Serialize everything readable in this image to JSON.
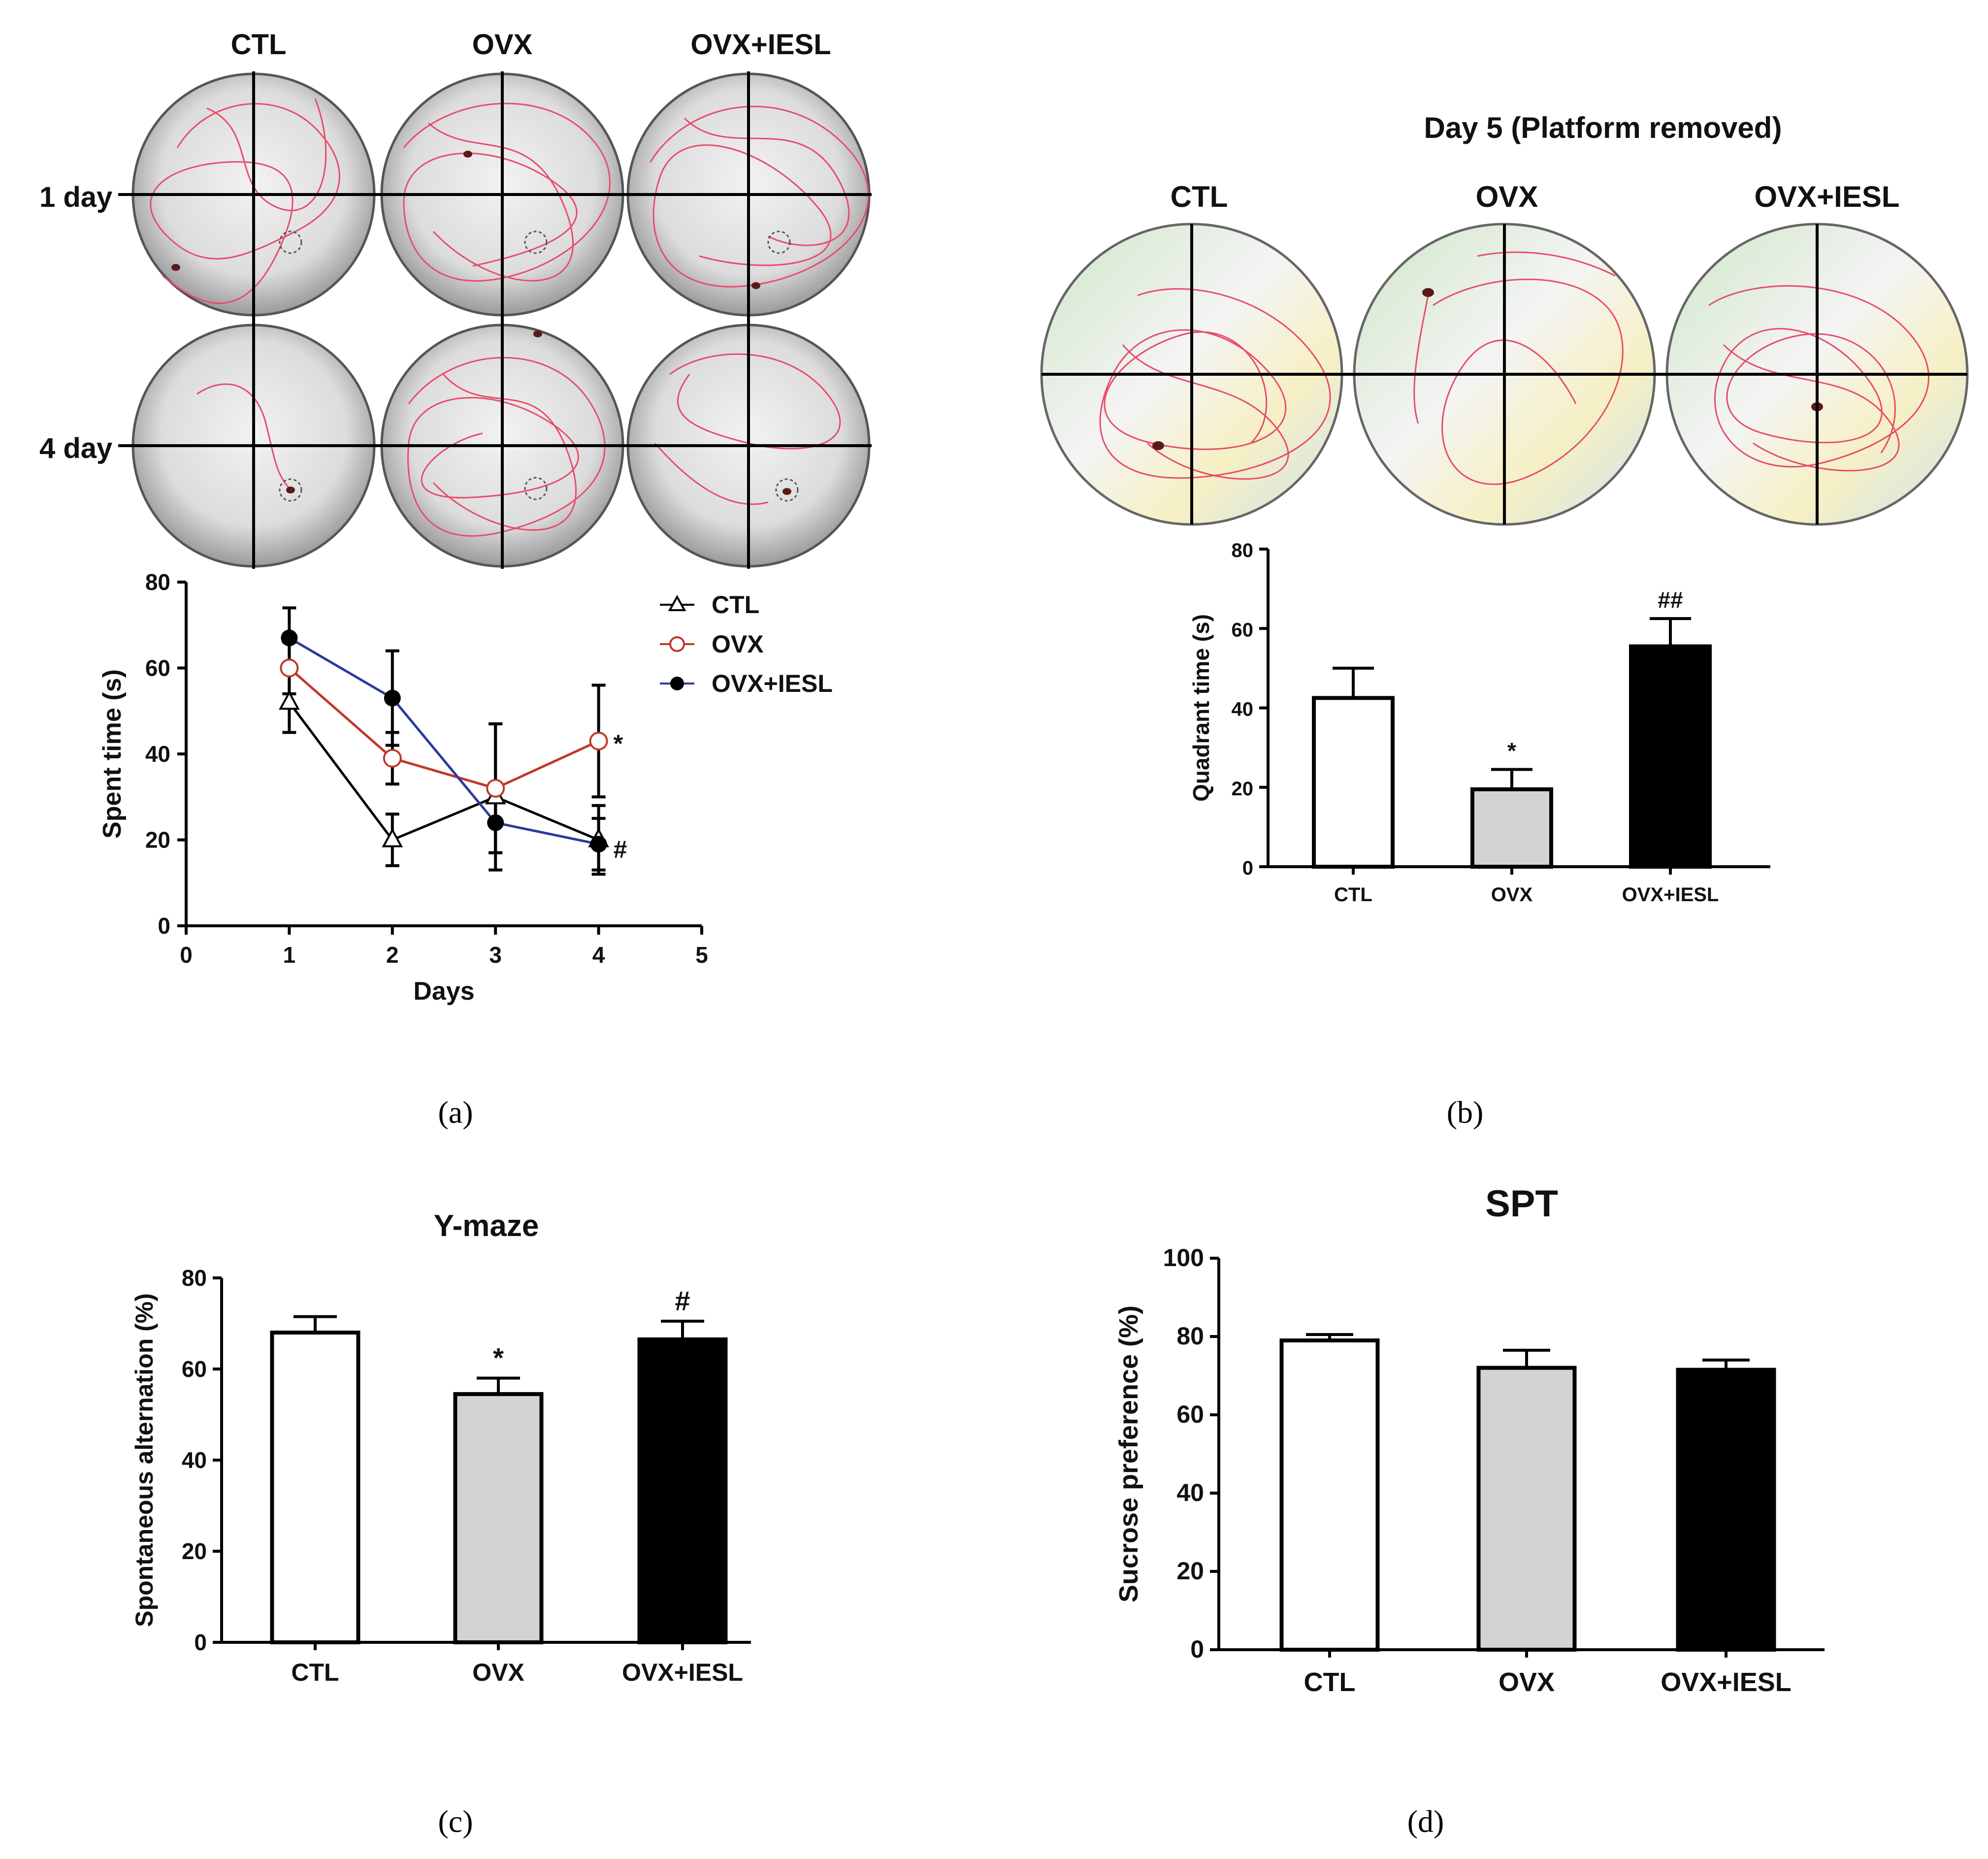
{
  "colors": {
    "ctl": "#000000",
    "ovx": "#c0392b",
    "iesl": "#2b3a9b",
    "track": "#e94b6b",
    "bar_white": "#ffffff",
    "bar_gray": "#d3d3d3",
    "bar_black": "#000000"
  },
  "panels": {
    "a": {
      "label": "(a)",
      "group_headers": [
        "CTL",
        "OVX",
        "OVX+IESL"
      ],
      "row_labels": [
        "1 day",
        "4 day"
      ]
    },
    "b": {
      "label": "(b)",
      "title": "Day 5 (Platform removed)",
      "group_headers": [
        "CTL",
        "OVX",
        "OVX+IESL"
      ]
    },
    "c": {
      "label": "(c)"
    },
    "d": {
      "label": "(d)"
    }
  },
  "chart_data": [
    {
      "id": "a",
      "type": "line",
      "title": "",
      "xlabel": "Days",
      "ylabel": "Spent time (s)",
      "xlim": [
        0,
        5
      ],
      "ylim": [
        0,
        80
      ],
      "xticks": [
        "0",
        "1",
        "2",
        "3",
        "4",
        "5"
      ],
      "yticks": [
        "0",
        "20",
        "40",
        "60",
        "80"
      ],
      "legend": "top-right",
      "series": [
        {
          "name": "CTL",
          "marker": "open-triangle",
          "x": [
            1,
            2,
            3,
            4
          ],
          "y": [
            52,
            20,
            30,
            20
          ],
          "err": [
            7,
            6,
            17,
            8
          ]
        },
        {
          "name": "OVX",
          "marker": "open-circle",
          "x": [
            1,
            2,
            3,
            4
          ],
          "y": [
            60,
            39,
            32,
            43
          ],
          "err": [
            6,
            6,
            15,
            13
          ]
        },
        {
          "name": "OVX+IESL",
          "marker": "filled-circle",
          "x": [
            1,
            2,
            3,
            4
          ],
          "y": [
            67,
            53,
            24,
            19
          ],
          "err": [
            7,
            11,
            7,
            6
          ]
        }
      ],
      "annotations": [
        {
          "text": "*",
          "x": 4,
          "y": 43
        },
        {
          "text": "#",
          "x": 4,
          "y": 19
        }
      ]
    },
    {
      "id": "b",
      "type": "bar",
      "title": "",
      "xlabel": "",
      "ylabel": "Quadrant time (s)",
      "ylim": [
        0,
        80
      ],
      "yticks": [
        "0",
        "20",
        "40",
        "60",
        "80"
      ],
      "categories": [
        "CTL",
        "OVX",
        "OVX+IESL"
      ],
      "values": [
        42.5,
        19.5,
        55.5
      ],
      "errors": [
        7.5,
        5,
        7
      ],
      "annotations": [
        "",
        "*",
        "##"
      ]
    },
    {
      "id": "c",
      "type": "bar",
      "title": "Y-maze",
      "xlabel": "",
      "ylabel": "Spontaneous alternation (%)",
      "ylim": [
        0,
        80
      ],
      "yticks": [
        "0",
        "20",
        "40",
        "60",
        "80"
      ],
      "categories": [
        "CTL",
        "OVX",
        "OVX+IESL"
      ],
      "values": [
        68,
        54.5,
        66.5
      ],
      "errors": [
        3.5,
        3.5,
        4
      ],
      "annotations": [
        "",
        "*",
        "#"
      ]
    },
    {
      "id": "d",
      "type": "bar",
      "title": "SPT",
      "xlabel": "",
      "ylabel": "Sucrose preference (%)",
      "ylim": [
        0,
        100
      ],
      "yticks": [
        "0",
        "20",
        "40",
        "60",
        "80",
        "100"
      ],
      "categories": [
        "CTL",
        "OVX",
        "OVX+IESL"
      ],
      "values": [
        79,
        72,
        71.5
      ],
      "errors": [
        1.5,
        4.5,
        2.5
      ],
      "annotations": [
        "",
        "",
        ""
      ]
    }
  ]
}
